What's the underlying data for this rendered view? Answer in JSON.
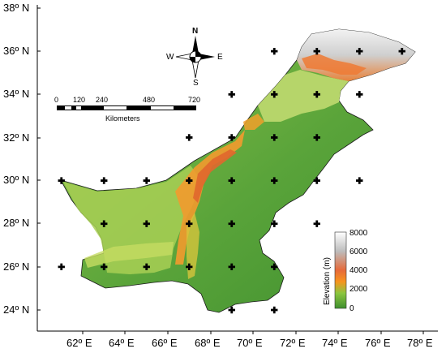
{
  "map": {
    "latitude_labels": [
      "38º N",
      "36º N",
      "34º N",
      "32º N",
      "30º N",
      "28º N",
      "26º N",
      "24º N"
    ],
    "longitude_labels": [
      "62º E",
      "64º E",
      "66º E",
      "68º E",
      "70º E",
      "72º E",
      "74º E",
      "76º E",
      "78º E"
    ],
    "compass": {
      "north": "N",
      "south": "S",
      "east": "E",
      "west": "W"
    },
    "scale_bar": {
      "ticks": [
        "0",
        "120",
        "240",
        "480",
        "720"
      ],
      "unit_label": "Kilometers"
    },
    "legend": {
      "title": "Elevation (m)",
      "ticks": [
        "8000",
        "6000",
        "4000",
        "2000",
        "0"
      ],
      "colors": [
        "#ffffff",
        "#bdbdbd",
        "#e66a3a",
        "#f7941d",
        "#8cc63f",
        "#3e8e2e"
      ]
    },
    "station_markers": [
      {
        "lon": 69,
        "lat": 24
      },
      {
        "lon": 71,
        "lat": 24
      },
      {
        "lon": 61,
        "lat": 26
      },
      {
        "lon": 63,
        "lat": 26
      },
      {
        "lon": 65,
        "lat": 26
      },
      {
        "lon": 67,
        "lat": 26
      },
      {
        "lon": 69,
        "lat": 26
      },
      {
        "lon": 71,
        "lat": 26
      },
      {
        "lon": 63,
        "lat": 28
      },
      {
        "lon": 65,
        "lat": 28
      },
      {
        "lon": 67,
        "lat": 28
      },
      {
        "lon": 69,
        "lat": 28
      },
      {
        "lon": 71,
        "lat": 28
      },
      {
        "lon": 73,
        "lat": 28
      },
      {
        "lon": 61,
        "lat": 30
      },
      {
        "lon": 63,
        "lat": 30
      },
      {
        "lon": 65,
        "lat": 30
      },
      {
        "lon": 67,
        "lat": 30
      },
      {
        "lon": 69,
        "lat": 30
      },
      {
        "lon": 71,
        "lat": 30
      },
      {
        "lon": 73,
        "lat": 30
      },
      {
        "lon": 75,
        "lat": 30
      },
      {
        "lon": 67,
        "lat": 32
      },
      {
        "lon": 69,
        "lat": 32
      },
      {
        "lon": 71,
        "lat": 32
      },
      {
        "lon": 73,
        "lat": 32
      },
      {
        "lon": 69,
        "lat": 34
      },
      {
        "lon": 71,
        "lat": 34
      },
      {
        "lon": 73,
        "lat": 34
      },
      {
        "lon": 75,
        "lat": 34
      },
      {
        "lon": 71,
        "lat": 36
      },
      {
        "lon": 73,
        "lat": 36
      },
      {
        "lon": 75,
        "lat": 36
      },
      {
        "lon": 77,
        "lat": 36
      }
    ]
  }
}
